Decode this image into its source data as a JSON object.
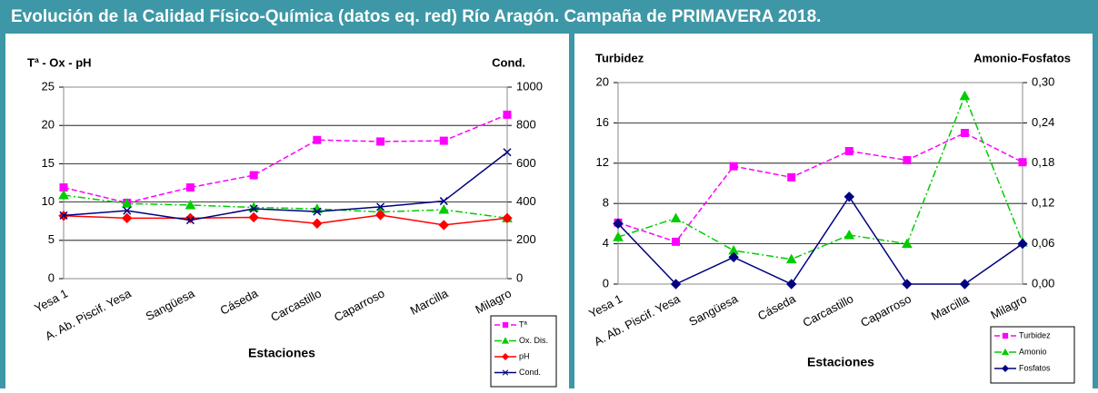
{
  "title": "Evolución de la Calidad Físico-Química (datos eq. red) Río Aragón. Campaña de PRIMAVERA 2018.",
  "chart_data": [
    {
      "type": "line",
      "y_label": "Tª - Ox - pH",
      "y2_label": "Cond.",
      "x_label": "Estaciones",
      "categories": [
        "Yesa 1",
        "A. Ab. Piscif. Yesa",
        "Sangüesa",
        "Cáseda",
        "Carcastillo",
        "Caparroso",
        "Marcilla",
        "Milagro"
      ],
      "ylim": [
        0,
        25
      ],
      "yticks": [
        0,
        5,
        10,
        15,
        20,
        25
      ],
      "y2lim": [
        0,
        1000
      ],
      "y2ticks": [
        0,
        200,
        400,
        600,
        800,
        1000
      ],
      "grid": true,
      "series": [
        {
          "name": "Tª",
          "color": "#ff00ff",
          "marker": "square",
          "dash": "dashed",
          "values": [
            11.9,
            9.9,
            11.9,
            13.5,
            18.1,
            17.9,
            18.0,
            21.4
          ]
        },
        {
          "name": "Ox. Dis.",
          "color": "#00cc00",
          "marker": "triangle",
          "dash": "dashdot",
          "values": [
            10.9,
            9.8,
            9.6,
            9.3,
            9.1,
            8.7,
            9.0,
            7.9
          ]
        },
        {
          "name": "pH",
          "color": "#ff0000",
          "marker": "diamond",
          "dash": "solid",
          "values": [
            8.2,
            7.9,
            7.9,
            8.0,
            7.2,
            8.3,
            7.0,
            7.9
          ]
        },
        {
          "name": "Cond.",
          "color": "#000080",
          "marker": "x",
          "dash": "solid",
          "axis": "y2",
          "values": [
            330,
            355,
            305,
            365,
            350,
            375,
            405,
            660
          ]
        }
      ]
    },
    {
      "type": "line",
      "y_label": "Turbidez",
      "y2_label": "Amonio-Fosfatos",
      "x_label": "Estaciones",
      "categories": [
        "Yesa 1",
        "A. Ab. Piscif. Yesa",
        "Sangüesa",
        "Cáseda",
        "Carcastillo",
        "Caparroso",
        "Marcilla",
        "Milagro"
      ],
      "ylim": [
        0,
        20
      ],
      "yticks": [
        0,
        4,
        8,
        12,
        16,
        20
      ],
      "y2lim": [
        0,
        0.3
      ],
      "y2ticks": [
        {
          "value": 0,
          "label": "0,00"
        },
        {
          "value": 0.06,
          "label": "0,06"
        },
        {
          "value": 0.12,
          "label": "0,12"
        },
        {
          "value": 0.18,
          "label": "0,18"
        },
        {
          "value": 0.24,
          "label": "0,24"
        },
        {
          "value": 0.3,
          "label": "0,30"
        }
      ],
      "grid": true,
      "series": [
        {
          "name": "Turbidez",
          "color": "#ff00ff",
          "marker": "square",
          "dash": "dashed",
          "values": [
            6.1,
            4.2,
            11.7,
            10.6,
            13.2,
            12.3,
            15.0,
            12.1
          ]
        },
        {
          "name": "Amonio",
          "color": "#00cc00",
          "marker": "triangle",
          "dash": "dashdot",
          "axis": "y2",
          "values": [
            0.07,
            0.098,
            0.05,
            0.037,
            0.073,
            0.06,
            0.28,
            0.062
          ]
        },
        {
          "name": "Fosfatos",
          "color": "#000080",
          "marker": "diamond",
          "dash": "solid",
          "axis": "y2",
          "values": [
            0.09,
            0,
            0.04,
            0,
            0.13,
            0,
            0,
            0.06
          ]
        }
      ]
    }
  ]
}
